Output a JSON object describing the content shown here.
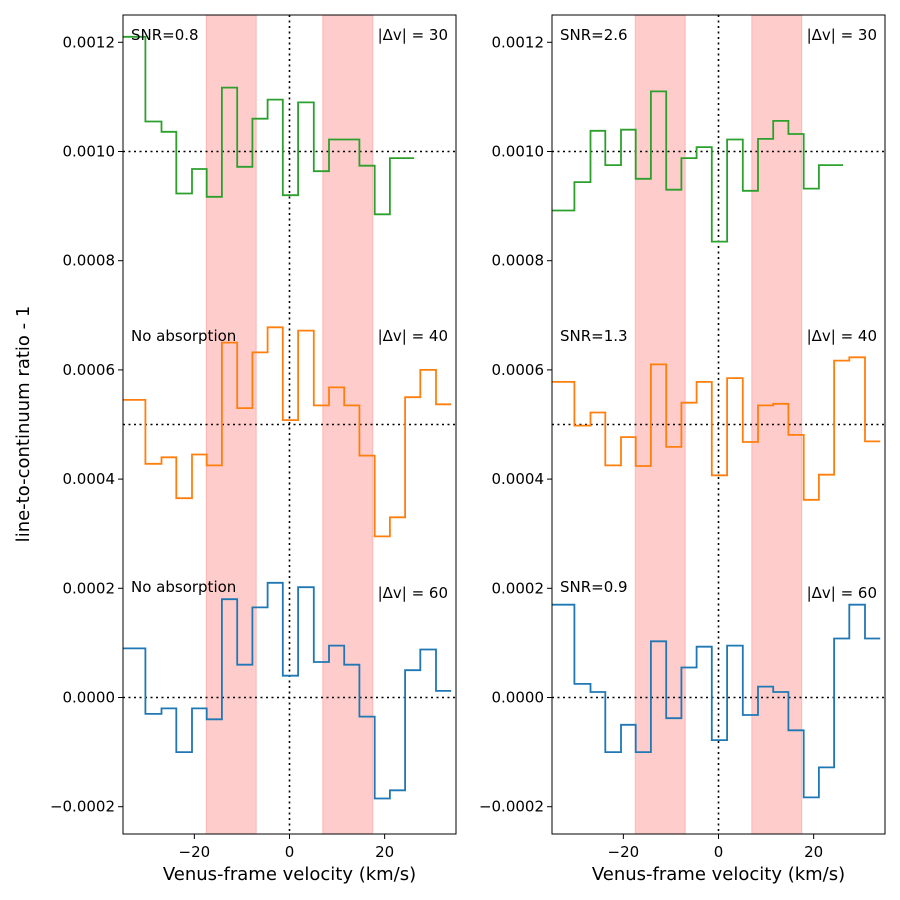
{
  "chart_data": {
    "type": "line",
    "ylabel": "line-to-continuum ratio - 1",
    "xlabel": "Venus-frame velocity (km/s)",
    "xlim": [
      -35,
      35
    ],
    "ylim": [
      -0.00025,
      0.00125
    ],
    "xticks": [
      -20,
      0,
      20
    ],
    "xtick_labels": [
      "−20",
      "0",
      "20"
    ],
    "yticks": [
      -0.0002,
      0,
      0.0002,
      0.0004,
      0.0006,
      0.0008,
      0.001,
      0.0012
    ],
    "ytick_labels": [
      "−0.0002",
      "0.0000",
      "0.0002",
      "0.0004",
      "0.0006",
      "0.0008",
      "0.0010",
      "0.0012"
    ],
    "shaded_bands": [
      [
        -17.5,
        -7
      ],
      [
        7,
        17.5
      ]
    ],
    "baselines": [
      0,
      0.0005,
      0.001
    ],
    "vline": 0,
    "panels": [
      {
        "series": [
          {
            "color": "#1f77b4",
            "label": "|Δv| = 60",
            "note": "No absorption",
            "x": [
              -36.5,
              -33.5,
              -30.3,
              -26.9,
              -23.8,
              -20.5,
              -17.4,
              -14.2,
              -11,
              -7.8,
              -4.6,
              -1.4,
              1.8,
              5.1,
              8.3,
              11.5,
              14.7,
              17.9,
              21.1,
              24.3,
              27.5,
              30.8,
              34
            ],
            "y": [
              9e-05,
              9e-05,
              -3e-05,
              -2e-05,
              -0.0001,
              -2e-05,
              -4e-05,
              0.00018,
              6e-05,
              0.000165,
              0.00021,
              4e-05,
              0.000202,
              6.5e-05,
              9.5e-05,
              6e-05,
              -3.5e-05,
              -0.000185,
              -0.00017,
              5e-05,
              8.8e-05,
              1.2e-05,
              1.2e-05
            ]
          },
          {
            "color": "#ff7f0e",
            "label": "|Δv| = 40",
            "note": "No absorption",
            "x": [
              -36.5,
              -33.5,
              -30.3,
              -26.9,
              -23.8,
              -20.5,
              -17.4,
              -14.2,
              -11,
              -7.8,
              -4.6,
              -1.4,
              1.8,
              5.1,
              8.3,
              11.5,
              14.7,
              17.9,
              21.1,
              24.3,
              27.5,
              30.8,
              34
            ],
            "y": [
              0.000545,
              0.000545,
              0.000428,
              0.00044,
              0.000365,
              0.000445,
              0.000425,
              0.00065,
              0.00053,
              0.000632,
              0.000678,
              0.000508,
              0.000672,
              0.000535,
              0.000568,
              0.000535,
              0.000443,
              0.000295,
              0.00033,
              0.00055,
              0.0006,
              0.000537,
              0.000537
            ]
          },
          {
            "color": "#2ca02c",
            "label": "|Δv| = 30",
            "note": "SNR=0.8",
            "x": [
              -36.5,
              -33.5,
              -30.3,
              -26.9,
              -23.8,
              -20.5,
              -17.4,
              -14.2,
              -11,
              -7.8,
              -4.6,
              -1.4,
              1.8,
              5.1,
              8.3,
              11.5,
              14.7,
              17.9,
              21.1,
              24.3,
              26.2
            ],
            "y": [
              0.00121,
              0.00121,
              0.001055,
              0.001036,
              0.000923,
              0.000968,
              0.000917,
              0.001117,
              0.000972,
              0.00106,
              0.001095,
              0.00092,
              0.00109,
              0.000964,
              0.001022,
              0.001022,
              0.000974,
              0.000885,
              0.000988,
              0.000988,
              0.000988
            ]
          }
        ]
      },
      {
        "series": [
          {
            "color": "#1f77b4",
            "label": "|Δv| = 60",
            "note": "SNR=0.9",
            "x": [
              -36.5,
              -33.5,
              -30.3,
              -26.9,
              -23.8,
              -20.5,
              -17.4,
              -14.2,
              -11,
              -7.8,
              -4.6,
              -1.4,
              1.8,
              5.1,
              8.3,
              11.5,
              14.7,
              17.9,
              21.1,
              24.3,
              27.5,
              30.8,
              34
            ],
            "y": [
              0.00017,
              0.00017,
              2.5e-05,
              1e-05,
              -0.0001,
              -5e-05,
              -0.0001,
              0.000103,
              -3.8e-05,
              5.5e-05,
              9.3e-05,
              -7.8e-05,
              9.5e-05,
              -3.2e-05,
              2e-05,
              1e-05,
              -6e-05,
              -0.000183,
              -0.000128,
              0.000108,
              0.00017,
              0.000108,
              0.000108
            ]
          },
          {
            "color": "#ff7f0e",
            "label": "|Δv| = 40",
            "note": "SNR=1.3",
            "x": [
              -36.5,
              -33.5,
              -30.3,
              -26.9,
              -23.8,
              -20.5,
              -17.4,
              -14.2,
              -11,
              -7.8,
              -4.6,
              -1.4,
              1.8,
              5.1,
              8.3,
              11.5,
              14.7,
              17.9,
              21.1,
              24.3,
              27.5,
              30.8,
              34
            ],
            "y": [
              0.000578,
              0.000578,
              0.000498,
              0.000522,
              0.000425,
              0.000477,
              0.000424,
              0.00061,
              0.000459,
              0.00054,
              0.000578,
              0.000407,
              0.000585,
              0.000468,
              0.000535,
              0.000538,
              0.000481,
              0.000362,
              0.000408,
              0.000617,
              0.000623,
              0.000469,
              0.000469
            ]
          },
          {
            "color": "#2ca02c",
            "label": "|Δv| = 30",
            "note": "SNR=2.6",
            "x": [
              -36.5,
              -33.5,
              -30.3,
              -26.9,
              -23.8,
              -20.5,
              -17.4,
              -14.2,
              -11,
              -7.8,
              -4.6,
              -1.4,
              1.8,
              5.1,
              8.3,
              11.5,
              14.7,
              17.9,
              21.1,
              24.3,
              26.2
            ],
            "y": [
              0.000892,
              0.000892,
              0.000944,
              0.001038,
              0.000975,
              0.00104,
              0.00095,
              0.00111,
              0.00093,
              0.000988,
              0.001008,
              0.000835,
              0.001022,
              0.000928,
              0.001023,
              0.001056,
              0.001032,
              0.000932,
              0.000975,
              0.000975,
              0.000975
            ]
          }
        ]
      }
    ]
  }
}
